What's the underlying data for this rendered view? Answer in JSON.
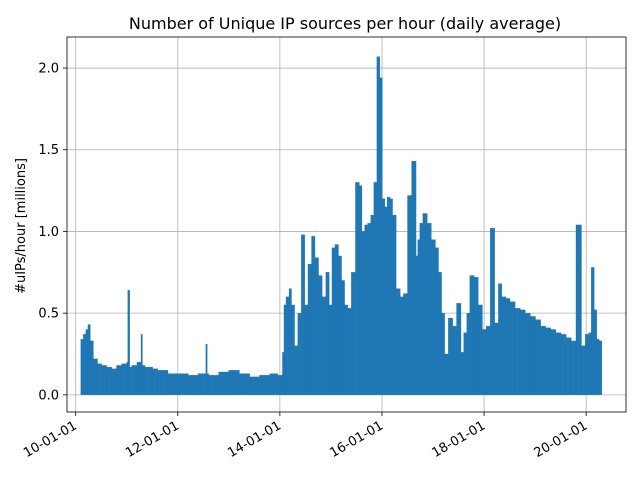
{
  "chart_data": {
    "type": "bar",
    "title": "Number of Unique IP sources per hour (daily average)",
    "xlabel": "",
    "ylabel": "#uIPs/hour [millions]",
    "x_tick_labels": [
      "10-01-01",
      "12-01-01",
      "14-01-01",
      "16-01-01",
      "18-01-01",
      "20-01-01"
    ],
    "x_tick_years": [
      2010,
      2012,
      2014,
      2016,
      2018,
      2020
    ],
    "y_tick_labels": [
      "0.0",
      "0.5",
      "1.0",
      "1.5",
      "2.0"
    ],
    "y_ticks": [
      0.0,
      0.5,
      1.0,
      1.5,
      2.0
    ],
    "xlim": [
      2009.83,
      2020.78
    ],
    "ylim": [
      -0.105,
      2.19
    ],
    "grid": true,
    "color": "#1f77b4",
    "series": [
      {
        "x": [
          2010.1,
          2010.15,
          2010.2,
          2010.24,
          2010.28,
          2010.34,
          2010.42,
          2010.5,
          2010.6,
          2010.7,
          2010.8,
          2010.9,
          2011.0,
          2011.02,
          2011.05,
          2011.1,
          2011.2,
          2011.28,
          2011.3,
          2011.35,
          2011.5,
          2011.6,
          2011.8,
          2012.0,
          2012.2,
          2012.4,
          2012.55,
          2012.57,
          2012.6,
          2012.8,
          2013.0,
          2013.2,
          2013.4,
          2013.6,
          2013.8,
          2013.95,
          2014.05,
          2014.08,
          2014.12,
          2014.18,
          2014.22,
          2014.28,
          2014.35,
          2014.42,
          2014.48,
          2014.55,
          2014.62,
          2014.68,
          2014.75,
          2014.82,
          2014.9,
          2014.96,
          2015.02,
          2015.08,
          2015.14,
          2015.2,
          2015.26,
          2015.32,
          2015.4,
          2015.48,
          2015.55,
          2015.6,
          2015.66,
          2015.72,
          2015.78,
          2015.84,
          2015.9,
          2015.95,
          2016.0,
          2016.05,
          2016.1,
          2016.15,
          2016.2,
          2016.27,
          2016.35,
          2016.42,
          2016.5,
          2016.58,
          2016.66,
          2016.7,
          2016.74,
          2016.8,
          2016.88,
          2016.96,
          2017.04,
          2017.1,
          2017.16,
          2017.22,
          2017.3,
          2017.38,
          2017.46,
          2017.54,
          2017.6,
          2017.66,
          2017.72,
          2017.8,
          2017.88,
          2017.96,
          2018.04,
          2018.12,
          2018.2,
          2018.28,
          2018.34,
          2018.42,
          2018.5,
          2018.6,
          2018.7,
          2018.8,
          2018.9,
          2019.0,
          2019.1,
          2019.2,
          2019.3,
          2019.4,
          2019.5,
          2019.6,
          2019.7,
          2019.8,
          2019.9,
          2019.98,
          2020.05,
          2020.1,
          2020.15,
          2020.2,
          2020.25
        ],
        "values": [
          0.34,
          0.37,
          0.4,
          0.43,
          0.33,
          0.22,
          0.19,
          0.18,
          0.17,
          0.16,
          0.18,
          0.19,
          0.2,
          0.64,
          0.17,
          0.18,
          0.2,
          0.37,
          0.18,
          0.17,
          0.16,
          0.15,
          0.13,
          0.13,
          0.12,
          0.13,
          0.31,
          0.13,
          0.12,
          0.14,
          0.15,
          0.13,
          0.11,
          0.12,
          0.13,
          0.12,
          0.26,
          0.55,
          0.6,
          0.65,
          0.55,
          0.3,
          0.5,
          0.98,
          0.55,
          0.8,
          0.97,
          0.84,
          0.73,
          0.6,
          0.75,
          0.55,
          0.9,
          0.92,
          0.85,
          0.7,
          0.55,
          0.53,
          0.75,
          1.3,
          1.28,
          1.0,
          1.04,
          1.05,
          1.1,
          1.3,
          2.07,
          1.94,
          1.2,
          1.15,
          1.21,
          1.2,
          1.1,
          0.65,
          0.6,
          0.62,
          1.22,
          1.43,
          0.85,
          0.95,
          1.05,
          1.11,
          1.05,
          0.95,
          0.9,
          0.75,
          0.5,
          0.25,
          0.47,
          0.42,
          0.56,
          0.26,
          0.38,
          0.5,
          0.73,
          0.72,
          0.55,
          0.4,
          0.42,
          1.02,
          0.44,
          0.68,
          0.6,
          0.59,
          0.57,
          0.53,
          0.52,
          0.5,
          0.48,
          0.46,
          0.42,
          0.41,
          0.4,
          0.38,
          0.37,
          0.35,
          0.33,
          1.04,
          0.3,
          0.37,
          0.38,
          0.78,
          0.52,
          0.34,
          0.33
        ]
      }
    ]
  }
}
